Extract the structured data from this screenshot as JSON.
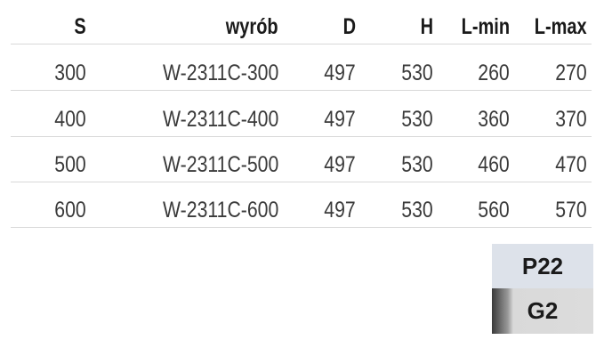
{
  "table": {
    "headers": [
      "S",
      "wyrób",
      "D",
      "H",
      "L-min",
      "L-max"
    ],
    "rows": [
      [
        "300",
        "W-2311C-300",
        "497",
        "530",
        "260",
        "270"
      ],
      [
        "400",
        "W-2311C-400",
        "497",
        "530",
        "360",
        "370"
      ],
      [
        "500",
        "W-2311C-500",
        "497",
        "530",
        "460",
        "470"
      ],
      [
        "600",
        "W-2311C-600",
        "497",
        "530",
        "560",
        "570"
      ]
    ]
  },
  "badges": {
    "top": {
      "label": "P22",
      "color": "#dde2ea"
    },
    "bottom": {
      "label": "G2",
      "color": "#dcdcdc"
    }
  }
}
